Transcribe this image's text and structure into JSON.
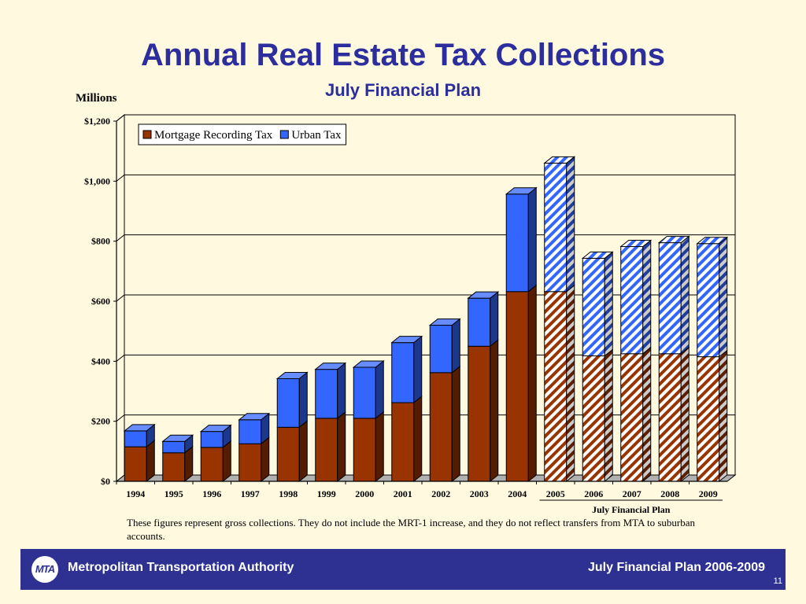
{
  "page": {
    "footer_org": "Metropolitan Transportation Authority",
    "footer_plan": "July Financial Plan 2006-2009",
    "page_number": "11",
    "logo_text": "MTA",
    "note": "These figures represent gross collections.  They do not include the MRT-1 increase, and they do not reflect transfers from MTA to suburban accounts."
  },
  "chart_data": {
    "type": "bar",
    "stacked": true,
    "title": "Annual Real Estate Tax Collections",
    "subtitle": "July Financial Plan",
    "ylabel": "Millions",
    "categories": [
      "1994",
      "1995",
      "1996",
      "1997",
      "1998",
      "1999",
      "2000",
      "2001",
      "2002",
      "2003",
      "2004",
      "2005",
      "2006",
      "2007",
      "2008",
      "2009"
    ],
    "series": [
      {
        "name": "Mortgage Recording Tax",
        "color": "#993300",
        "values": [
          115,
          95,
          113,
          125,
          180,
          210,
          210,
          262,
          362,
          450,
          632,
          632,
          418,
          425,
          425,
          415
        ]
      },
      {
        "name": "Urban Tax",
        "color": "#3366FF",
        "values": [
          53,
          38,
          53,
          80,
          162,
          163,
          170,
          200,
          158,
          160,
          325,
          428,
          325,
          357,
          370,
          377
        ]
      }
    ],
    "forecast_categories": [
      "2005",
      "2006",
      "2007",
      "2008",
      "2009"
    ],
    "forecast_label": "July Financial Plan",
    "yticks": [
      "$0",
      "$200",
      "$400",
      "$600",
      "$800",
      "$1,000",
      "$1,200"
    ],
    "ytick_values": [
      0,
      200,
      400,
      600,
      800,
      1000,
      1200
    ],
    "ylim": [
      0,
      1200
    ],
    "grid": true,
    "legend_position": "top-left"
  }
}
